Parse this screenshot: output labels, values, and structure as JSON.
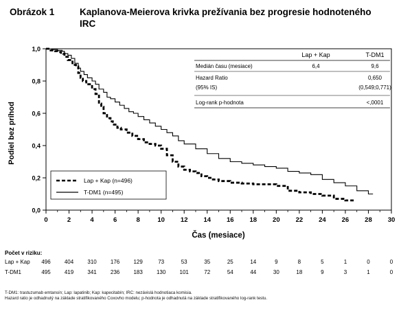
{
  "header": {
    "label": "Obrázok 1",
    "title": "Kaplanova-Meierova krivka prežívania bez progresie hodnoteného IRC"
  },
  "stats_table": {
    "columns": [
      "Lap + Kap",
      "T-DM1"
    ],
    "rows": [
      {
        "label": "Medián času (mesiace)",
        "lapkap": "6,4",
        "tdm1": "9,6"
      },
      {
        "label": "Hazard Ratio",
        "lapkap": "",
        "tdm1": "0,650"
      },
      {
        "label": "(95% IS)",
        "lapkap": "",
        "tdm1": "(0,549;0,771)"
      },
      {
        "label": "Log-rank p-hodnota",
        "lapkap": "",
        "tdm1": "<,0001"
      }
    ]
  },
  "chart_data": {
    "type": "line",
    "xlabel": "Čas (mesiace)",
    "ylabel": "Podiel bez príhod",
    "xlim": [
      0,
      30
    ],
    "ylim": [
      0,
      1.0
    ],
    "x_ticks": [
      "0",
      "2",
      "4",
      "6",
      "8",
      "10",
      "12",
      "14",
      "16",
      "18",
      "20",
      "22",
      "24",
      "26",
      "28",
      "30"
    ],
    "y_ticks": [
      "0,0",
      "0,2",
      "0,4",
      "0,6",
      "0,8",
      "1,0"
    ],
    "legend_position": "bottom-left",
    "series": [
      {
        "name": "Lap + Kap (n=496)",
        "style": "dashed",
        "color": "#000000",
        "x": [
          0,
          0.4,
          0.8,
          1.0,
          1.3,
          1.5,
          1.6,
          1.9,
          2.3,
          2.6,
          2.8,
          3.0,
          3.2,
          3.5,
          4.0,
          4.3,
          4.6,
          4.8,
          5.0,
          5.3,
          5.6,
          5.8,
          6.2,
          6.5,
          7.0,
          7.5,
          8.0,
          8.5,
          9.0,
          9.5,
          10.0,
          10.5,
          11.0,
          11.5,
          12.0,
          12.5,
          13.0,
          13.5,
          14.0,
          14.5,
          15.0,
          16.0,
          17.0,
          18.0,
          19.0,
          20.0,
          21.0,
          22.0,
          23.0,
          24.0,
          25.0,
          26.0,
          26.8
        ],
        "y": [
          1.0,
          0.99,
          0.985,
          0.98,
          0.975,
          0.97,
          0.95,
          0.93,
          0.9,
          0.89,
          0.85,
          0.82,
          0.8,
          0.78,
          0.75,
          0.72,
          0.66,
          0.64,
          0.6,
          0.57,
          0.55,
          0.53,
          0.51,
          0.5,
          0.48,
          0.46,
          0.44,
          0.42,
          0.41,
          0.4,
          0.38,
          0.34,
          0.3,
          0.27,
          0.25,
          0.24,
          0.23,
          0.21,
          0.2,
          0.19,
          0.18,
          0.17,
          0.165,
          0.16,
          0.16,
          0.15,
          0.12,
          0.11,
          0.1,
          0.09,
          0.07,
          0.06,
          0.06
        ]
      },
      {
        "name": "T-DM1 (n=495)",
        "style": "solid",
        "color": "#000000",
        "x": [
          0,
          0.5,
          1.0,
          1.4,
          1.6,
          1.9,
          2.2,
          2.5,
          2.8,
          3.0,
          3.3,
          3.6,
          4.0,
          4.3,
          4.6,
          5.0,
          5.3,
          5.6,
          6.0,
          6.4,
          6.8,
          7.2,
          7.6,
          8.0,
          8.5,
          9.0,
          9.5,
          10.0,
          10.5,
          11.0,
          11.5,
          12.0,
          13.0,
          14.0,
          15.0,
          16.0,
          17.0,
          18.0,
          19.0,
          20.0,
          21.0,
          22.0,
          23.0,
          24.0,
          25.0,
          26.0,
          27.0,
          28.0,
          28.4
        ],
        "y": [
          1.0,
          0.995,
          0.99,
          0.985,
          0.97,
          0.96,
          0.94,
          0.91,
          0.88,
          0.86,
          0.84,
          0.82,
          0.8,
          0.78,
          0.75,
          0.73,
          0.7,
          0.69,
          0.67,
          0.65,
          0.63,
          0.61,
          0.6,
          0.58,
          0.56,
          0.54,
          0.52,
          0.5,
          0.48,
          0.46,
          0.43,
          0.41,
          0.38,
          0.35,
          0.32,
          0.3,
          0.29,
          0.28,
          0.27,
          0.26,
          0.24,
          0.23,
          0.22,
          0.19,
          0.17,
          0.15,
          0.12,
          0.1,
          0.1
        ]
      }
    ]
  },
  "risk_table": {
    "heading": "Počet v riziku:",
    "rows": [
      {
        "label": "Lap + Kap",
        "values": [
          "496",
          "404",
          "310",
          "176",
          "129",
          "73",
          "53",
          "35",
          "25",
          "14",
          "9",
          "8",
          "5",
          "1",
          "0",
          "0"
        ]
      },
      {
        "label": "T-DM1",
        "values": [
          "495",
          "419",
          "341",
          "236",
          "183",
          "130",
          "101",
          "72",
          "54",
          "44",
          "30",
          "18",
          "9",
          "3",
          "1",
          "0"
        ]
      }
    ]
  },
  "footnotes": [
    "T-DM1: trastuzumab emtansín; Lap: lapatinib; Kap: kapecitabín; IRC: nezávislá hodnotiaca komisia.",
    "Hazard ratio je odhadnutý na základe stratifikovaného Coxovho modelu; p-hodnota je odhadnutá na základe stratifikovaného log-rank testu."
  ]
}
